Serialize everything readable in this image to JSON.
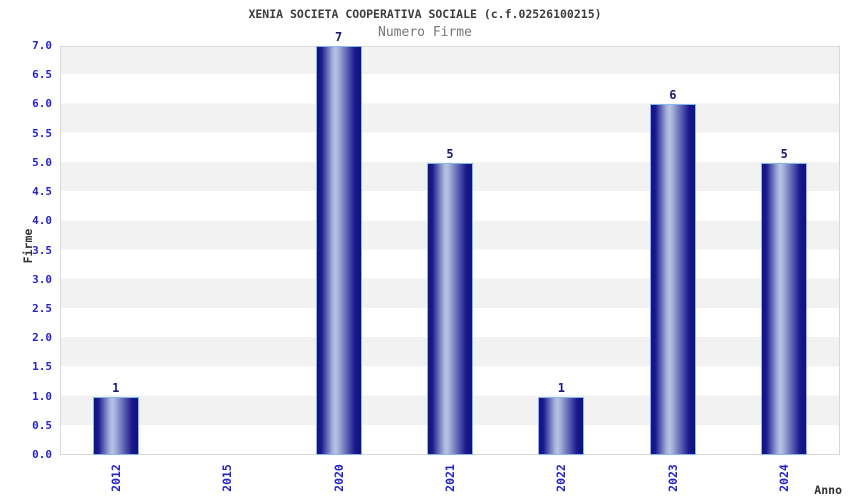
{
  "chart_data": {
    "type": "bar",
    "title": "XENIA SOCIETA COOPERATIVA SOCIALE (c.f.02526100215)",
    "subtitle": "Numero Firme",
    "xlabel": "Anno",
    "ylabel": "Firme",
    "categories": [
      "2012",
      "2015",
      "2020",
      "2021",
      "2022",
      "2023",
      "2024"
    ],
    "values": [
      1,
      0,
      7,
      5,
      1,
      6,
      5
    ],
    "ylim": [
      0,
      7
    ],
    "ytick_step": 0.5,
    "ytick_labels": [
      "7.0",
      "6.5",
      "6.0",
      "5.5",
      "5.0",
      "4.5",
      "4.0",
      "3.5",
      "3.0",
      "2.5",
      "2.0",
      "1.5",
      "1.0",
      "0.5",
      "0.0"
    ],
    "legend": "none",
    "grid": "alternating horizontal bands",
    "bar_value_labels": [
      "1",
      "7",
      "5",
      "1",
      "6",
      "5"
    ],
    "colors": {
      "bar_dark": "#1a1a8e",
      "bar_highlight": "#b7c1e4",
      "bar_border": "#85b9ec",
      "band_gray": "#f2f2f2",
      "band_white": "#ffffff",
      "plot_border": "#d8d8d8",
      "tick_label_blue": "#2424cf",
      "value_label_navy": "#191975",
      "title_color": "#3d3d3d",
      "subtitle_color": "#787878",
      "axis_title_color": "#333333"
    }
  }
}
